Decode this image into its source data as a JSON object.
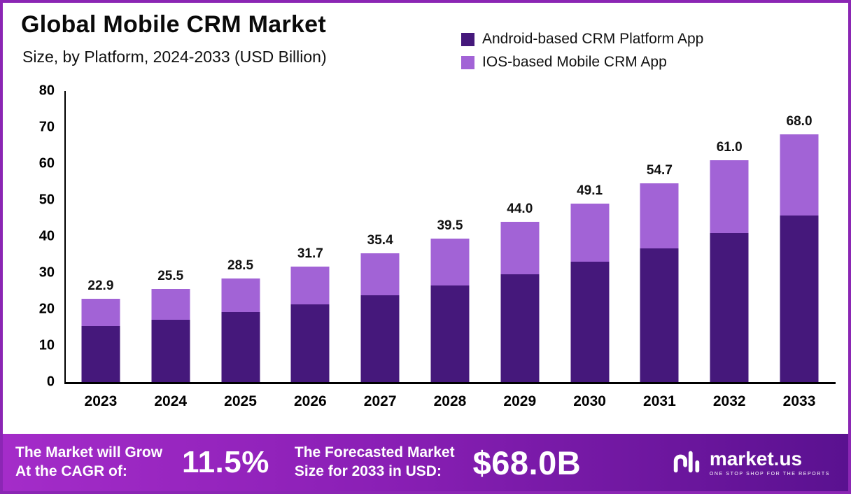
{
  "header": {
    "title": "Global Mobile CRM Market",
    "subtitle": "Size, by Platform, 2024-2033 (USD Billion)"
  },
  "chart_data": {
    "type": "bar",
    "stacked": true,
    "title": "Global Mobile CRM Market Size, by Platform, 2024-2033 (USD Billion)",
    "categories": [
      "2023",
      "2024",
      "2025",
      "2026",
      "2027",
      "2028",
      "2029",
      "2030",
      "2031",
      "2032",
      "2033"
    ],
    "series": [
      {
        "name": "Android-based CRM Platform App",
        "color": "#45187b",
        "values": [
          15.4,
          17.2,
          19.2,
          21.3,
          23.8,
          26.6,
          29.6,
          33.0,
          36.8,
          41.0,
          45.8
        ]
      },
      {
        "name": "IOS-based Mobile CRM App",
        "color": "#a263d6",
        "values": [
          7.5,
          8.3,
          9.3,
          10.4,
          11.6,
          12.9,
          14.4,
          16.1,
          17.9,
          20.0,
          22.2
        ]
      }
    ],
    "totals": [
      22.9,
      25.5,
      28.5,
      31.7,
      35.4,
      39.5,
      44.0,
      49.1,
      54.7,
      61.0,
      68.0
    ],
    "xlabel": "",
    "ylabel": "",
    "ylim": [
      0,
      80
    ],
    "ytick_step": 10,
    "grid": false,
    "legend_position": "top-right"
  },
  "banner": {
    "cagr_label_line1": "The Market will Grow",
    "cagr_label_line2": "At the CAGR of:",
    "cagr_value": "11.5%",
    "forecast_label_line1": "The Forecasted Market",
    "forecast_label_line2": "Size for 2033 in USD:",
    "forecast_value": "$68.0B",
    "brand_name": "market.us",
    "brand_tagline": "ONE STOP SHOP FOR THE REPORTS"
  },
  "colors": {
    "android_bar": "#45187b",
    "ios_bar": "#a263d6",
    "frame_border": "#8b26b4",
    "banner_gradient_start": "#a42cc9",
    "banner_gradient_end": "#5a1190",
    "axis": "#000000",
    "text": "#111111"
  }
}
